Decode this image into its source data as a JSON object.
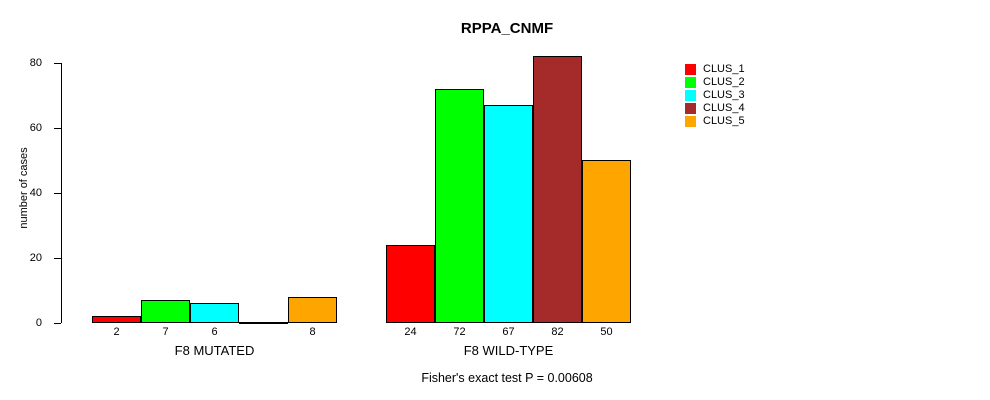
{
  "chart_data": {
    "type": "bar",
    "title": "RPPA_CNMF",
    "ylabel": "number of cases",
    "xlabel": "",
    "ylim": [
      0,
      80
    ],
    "yticks": [
      0,
      20,
      40,
      60,
      80
    ],
    "grid": false,
    "legend_position": "right",
    "series": [
      {
        "name": "CLUS_1",
        "color": "#ff0000"
      },
      {
        "name": "CLUS_2",
        "color": "#00ff00"
      },
      {
        "name": "CLUS_3",
        "color": "#00ffff"
      },
      {
        "name": "CLUS_4",
        "color": "#a52a2a"
      },
      {
        "name": "CLUS_5",
        "color": "#ffa500"
      }
    ],
    "groups": [
      {
        "label": "F8 MUTATED",
        "values": [
          2,
          7,
          6,
          0,
          8
        ],
        "bar_labels": [
          "2",
          "7",
          "6",
          "",
          "8"
        ]
      },
      {
        "label": "F8 WILD-TYPE",
        "values": [
          24,
          72,
          67,
          82,
          50
        ],
        "bar_labels": [
          "24",
          "72",
          "67",
          "82",
          "50"
        ]
      }
    ],
    "footnote": "Fisher's exact test P = 0.00608"
  }
}
